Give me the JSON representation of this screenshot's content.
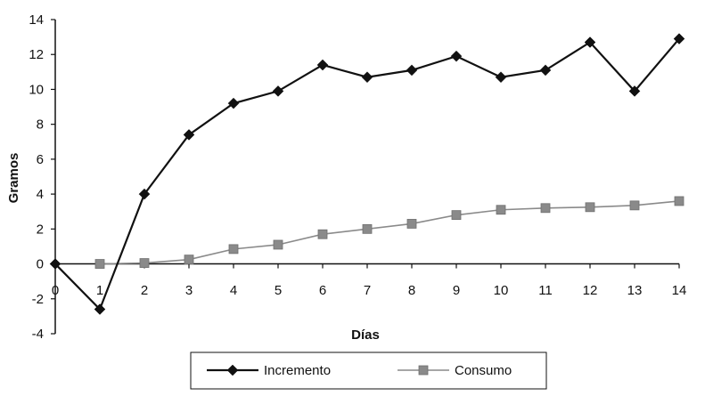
{
  "chart_data": {
    "type": "line",
    "xlabel": "Días",
    "ylabel": "Gramos",
    "x": [
      0,
      1,
      2,
      3,
      4,
      5,
      6,
      7,
      8,
      9,
      10,
      11,
      12,
      13,
      14
    ],
    "xlim": [
      0,
      14
    ],
    "ylim": [
      -4,
      14
    ],
    "yticks": [
      "-4",
      "-2",
      "0",
      "2",
      "4",
      "6",
      "8",
      "10",
      "12",
      "14"
    ],
    "xticks": [
      "0",
      "1",
      "2",
      "3",
      "4",
      "5",
      "6",
      "7",
      "8",
      "9",
      "10",
      "11",
      "12",
      "13",
      "14"
    ],
    "grid": false,
    "legend_position": "bottom",
    "series": [
      {
        "name": "Incremento",
        "marker": "diamond",
        "color": "#111111",
        "values": [
          0,
          -2.6,
          4,
          7.4,
          9.2,
          9.9,
          11.4,
          10.7,
          11.1,
          11.9,
          10.7,
          11.1,
          12.7,
          9.9,
          12.9
        ]
      },
      {
        "name": "Consumo",
        "marker": "square",
        "color": "#8a8a8a",
        "x": [
          1,
          2,
          3,
          4,
          5,
          6,
          7,
          8,
          9,
          10,
          11,
          12,
          13,
          14
        ],
        "values": [
          0,
          0.05,
          0.25,
          0.85,
          1.1,
          1.7,
          2,
          2.3,
          2.8,
          3.1,
          3.2,
          3.25,
          3.35,
          3.6
        ]
      }
    ]
  }
}
